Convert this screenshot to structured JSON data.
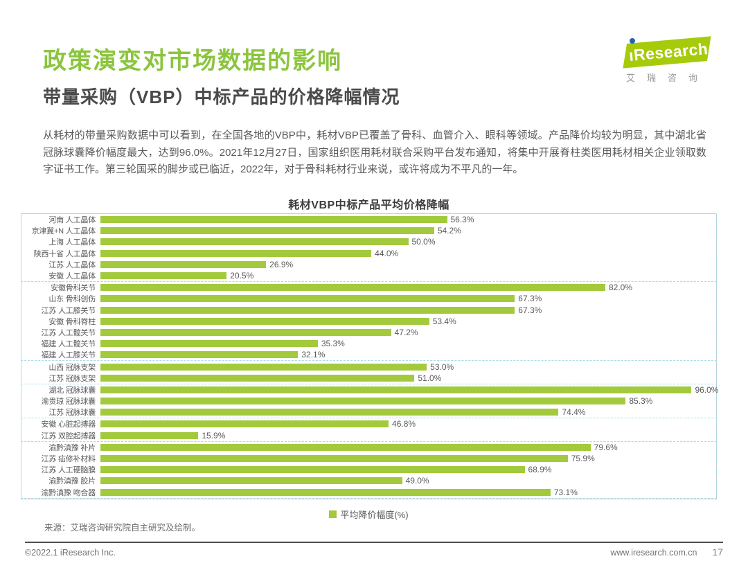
{
  "header": {
    "title": "政策演变对市场数据的影响",
    "subtitle": "带量采购（VBP）中标产品的价格降幅情况"
  },
  "logo": {
    "brand_i": "ı",
    "brand_rest": "Research",
    "caption": "艾瑞咨询"
  },
  "intro_text": "从耗材的带量采购数据中可以看到，在全国各地的VBP中，耗材VBP已覆盖了骨科、血管介入、眼科等领域。产品降价均较为明显，其中湖北省冠脉球囊降价幅度最大，达到96.0%。2021年12月27日，国家组织医用耗材联合采购平台发布通知，将集中开展脊柱类医用耗材相关企业领取数字证书工作。第三轮国采的脚步或已临近，2022年，对于骨科耗材行业来说，或许将成为不平凡的一年。",
  "chart_data": {
    "type": "bar",
    "orientation": "horizontal",
    "title": "耗材VBP中标产品平均价格降幅",
    "legend": [
      "平均降价幅度(%)"
    ],
    "value_unit": "%",
    "xlim": [
      0,
      100
    ],
    "bar_color": "#A3CA3C",
    "grid": "dashed group separators",
    "legend_position": "bottom-center",
    "groups": [
      {
        "items": [
          {
            "label": "河南 人工晶体",
            "value": 56.3
          },
          {
            "label": "京津冀+N 人工晶体",
            "value": 54.2
          },
          {
            "label": "上海 人工晶体",
            "value": 50.0
          },
          {
            "label": "陕西十省 人工晶体",
            "value": 44.0
          },
          {
            "label": "江苏 人工晶体",
            "value": 26.9
          },
          {
            "label": "安徽 人工晶体",
            "value": 20.5
          }
        ]
      },
      {
        "items": [
          {
            "label": "安徽骨科关节",
            "value": 82.0
          },
          {
            "label": "山东 骨科创伤",
            "value": 67.3
          },
          {
            "label": "江苏 人工膝关节",
            "value": 67.3
          },
          {
            "label": "安徽 骨科脊柱",
            "value": 53.4
          },
          {
            "label": "江苏 人工髋关节",
            "value": 47.2
          },
          {
            "label": "福建 人工髋关节",
            "value": 35.3
          },
          {
            "label": "福建 人工膝关节",
            "value": 32.1
          }
        ]
      },
      {
        "items": [
          {
            "label": "山西 冠脉支架",
            "value": 53.0
          },
          {
            "label": "江苏 冠脉支架",
            "value": 51.0
          }
        ]
      },
      {
        "items": [
          {
            "label": "湖北 冠脉球囊",
            "value": 96.0
          },
          {
            "label": "渝贵琼 冠脉球囊",
            "value": 85.3
          },
          {
            "label": "江苏 冠脉球囊",
            "value": 74.4
          }
        ]
      },
      {
        "items": [
          {
            "label": "安徽 心脏起搏器",
            "value": 46.8
          },
          {
            "label": "江苏 双腔起搏器",
            "value": 15.9
          }
        ]
      },
      {
        "items": [
          {
            "label": "渝黔滇豫 补片",
            "value": 79.6
          },
          {
            "label": "江苏 疝修补材料",
            "value": 75.9
          },
          {
            "label": "江苏 人工硬脑膜",
            "value": 68.9
          },
          {
            "label": "渝黔滇豫 胶片",
            "value": 49.0
          },
          {
            "label": "渝黔滇豫 吻合器",
            "value": 73.1
          }
        ]
      }
    ]
  },
  "source_note": "来源：艾瑞咨询研究院自主研究及绘制。",
  "footer": {
    "copyright": "©2022.1 iResearch Inc.",
    "website": "www.iresearch.com.cn",
    "page_number": "17"
  }
}
